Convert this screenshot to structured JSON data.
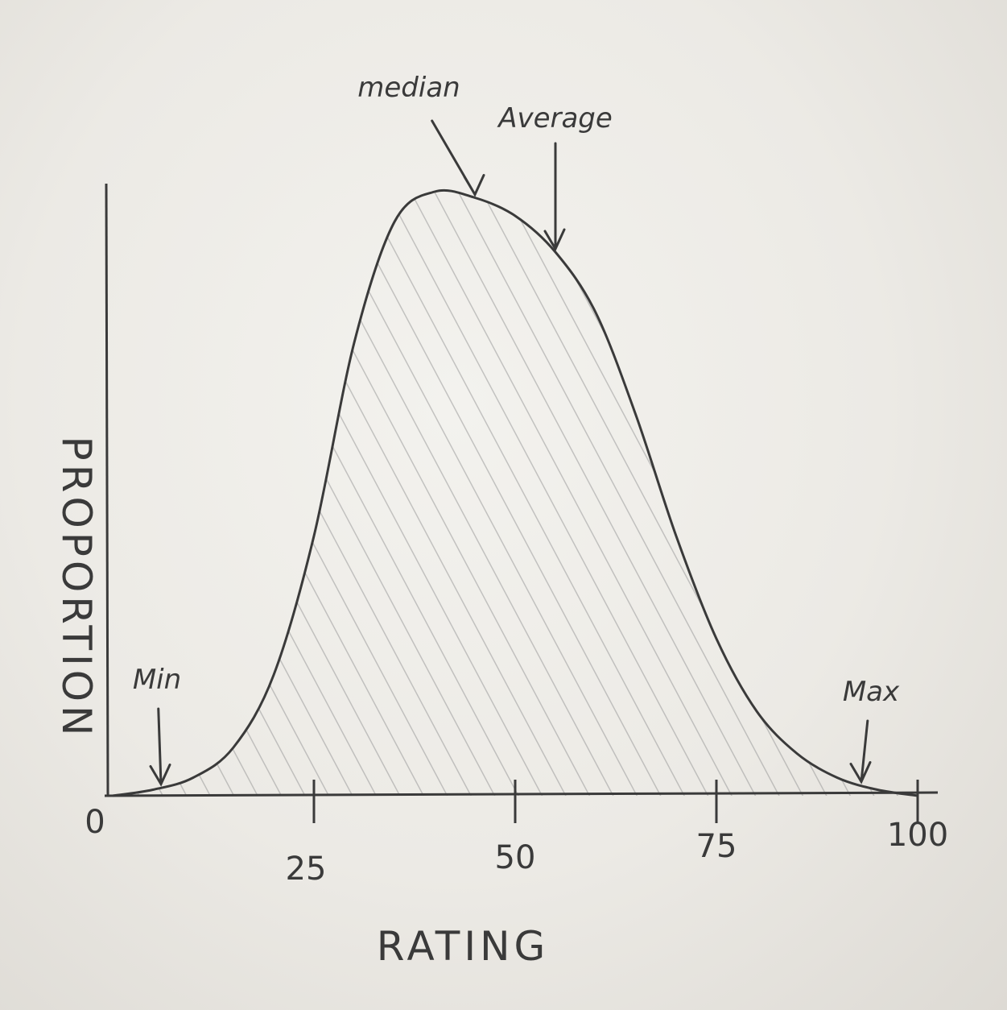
{
  "chart_data": {
    "type": "area",
    "title": "",
    "xlabel": "RATING",
    "ylabel": "PROPORTION",
    "xlim": [
      0,
      100
    ],
    "ylim": [
      0,
      1
    ],
    "origin_label": "0",
    "x_ticks": [
      {
        "value": 25,
        "label": "25"
      },
      {
        "value": 50,
        "label": "50"
      },
      {
        "value": 75,
        "label": "75"
      },
      {
        "value": 100,
        "label": "100"
      }
    ],
    "curve": {
      "x": [
        0,
        5,
        10,
        15,
        20,
        25,
        30,
        35,
        40,
        45,
        50,
        55,
        60,
        65,
        70,
        75,
        80,
        85,
        90,
        95,
        100
      ],
      "y": [
        0.0,
        0.01,
        0.03,
        0.08,
        0.2,
        0.43,
        0.75,
        0.95,
        1.0,
        0.99,
        0.96,
        0.9,
        0.8,
        0.63,
        0.43,
        0.26,
        0.14,
        0.07,
        0.03,
        0.01,
        0.0
      ]
    },
    "annotations": [
      {
        "label": "median",
        "x": 45
      },
      {
        "label": "Average",
        "x": 55
      },
      {
        "label": "Min",
        "x": 6
      },
      {
        "label": "Max",
        "x": 93
      }
    ],
    "grid": false,
    "fill": "hatched",
    "ink_color": "#3a3a3a",
    "hatch_color": "#9a9a9a",
    "paper_color": "#efeeea"
  }
}
